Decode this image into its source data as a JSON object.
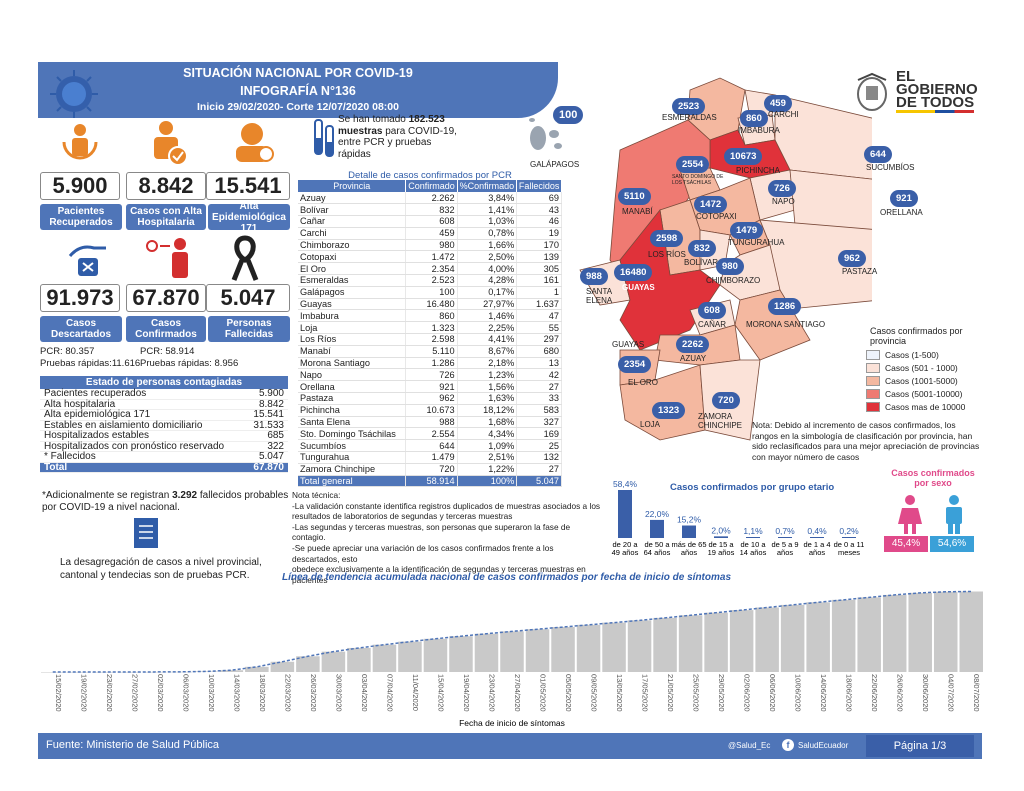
{
  "header": {
    "title": "SITUACIÓN NACIONAL POR  COVID-19",
    "subtitle": "INFOGRAFÍA N°136",
    "period": "Inicio 29/02/2020- Corte 12/07/2020 08:00"
  },
  "logo": {
    "line1": "EL",
    "line2": "GOBIERNO",
    "line3": "DE TODOS"
  },
  "stats": {
    "recuperados": {
      "value": "5.900",
      "label": "Pacientes Recuperados"
    },
    "alta_hosp": {
      "value": "8.842",
      "label": "Casos con Alta Hospitalaria"
    },
    "alta_epi": {
      "value": "15.541",
      "label": "Alta Epidemiológica 171"
    },
    "descartados": {
      "value": "91.973",
      "label": "Casos Descartados"
    },
    "confirmados": {
      "value": "67.870",
      "label": "Casos Confirmados"
    },
    "fallecidas": {
      "value": "5.047",
      "label": "Personas Fallecidas"
    },
    "pcr_desc": "PCR: 80.357",
    "rap_desc": "Pruebas rápidas:11.616",
    "pcr_conf": "PCR: 58.914",
    "rap_conf": "Pruebas rápidas: 8.956"
  },
  "muestras": {
    "pre": "Se han tomado ",
    "num": "182.523",
    "l2a": "muestras",
    "l2b": " para COVID-19,",
    "l3": "entre PCR y pruebas",
    "l4": "rápidas"
  },
  "tabla": {
    "title": "Detalle de casos confirmados por PCR",
    "headers": [
      "Provincia",
      "Confirmado",
      "%Confirmado",
      "Fallecidos"
    ],
    "rows": [
      [
        "Azuay",
        "2.262",
        "3,84%",
        "69"
      ],
      [
        "Bolívar",
        "832",
        "1,41%",
        "43"
      ],
      [
        "Cañar",
        "608",
        "1,03%",
        "46"
      ],
      [
        "Carchi",
        "459",
        "0,78%",
        "19"
      ],
      [
        "Chimborazo",
        "980",
        "1,66%",
        "170"
      ],
      [
        "Cotopaxi",
        "1.472",
        "2,50%",
        "139"
      ],
      [
        "El Oro",
        "2.354",
        "4,00%",
        "305"
      ],
      [
        "Esmeraldas",
        "2.523",
        "4,28%",
        "161"
      ],
      [
        "Galápagos",
        "100",
        "0,17%",
        "1"
      ],
      [
        "Guayas",
        "16.480",
        "27,97%",
        "1.637"
      ],
      [
        "Imbabura",
        "860",
        "1,46%",
        "47"
      ],
      [
        "Loja",
        "1.323",
        "2,25%",
        "55"
      ],
      [
        "Los Ríos",
        "2.598",
        "4,41%",
        "297"
      ],
      [
        "Manabí",
        "5.110",
        "8,67%",
        "680"
      ],
      [
        "Morona Santiago",
        "1.286",
        "2,18%",
        "13"
      ],
      [
        "Napo",
        "726",
        "1,23%",
        "42"
      ],
      [
        "Orellana",
        "921",
        "1,56%",
        "27"
      ],
      [
        "Pastaza",
        "962",
        "1,63%",
        "33"
      ],
      [
        "Pichincha",
        "10.673",
        "18,12%",
        "583"
      ],
      [
        "Santa Elena",
        "988",
        "1,68%",
        "327"
      ],
      [
        "Sto. Domingo Tsáchilas",
        "2.554",
        "4,34%",
        "169"
      ],
      [
        "Sucumbíos",
        "644",
        "1,09%",
        "25"
      ],
      [
        "Tungurahua",
        "1.479",
        "2,51%",
        "132"
      ],
      [
        "Zamora Chinchipe",
        "720",
        "1,22%",
        "27"
      ]
    ],
    "total": [
      "Total general",
      "58.914",
      "100%",
      "5.047"
    ]
  },
  "estado": {
    "title": "Estado de personas contagiadas",
    "rows": [
      [
        "Pacientes recuperados",
        "5.900"
      ],
      [
        "Alta hospitalaria",
        "8.842"
      ],
      [
        "Alta epidemiológica 171",
        "15.541"
      ],
      [
        "Estables en aislamiento domiciliario",
        "31.533"
      ],
      [
        "Hospitalizados estables",
        "685"
      ],
      [
        "Hospitalizados con pronóstico reservado",
        "322"
      ],
      [
        "* Fallecidos",
        "5.047"
      ]
    ],
    "total": [
      "Total",
      "67.870"
    ]
  },
  "nota_fallecidos": {
    "a": "*Adicionalmente se registran ",
    "b": "3.292",
    "c": " fallecidos probables",
    "d": "por COVID-19 a nivel nacional."
  },
  "desagregacion": {
    "l1": "La desagregación de casos a nivel provincial,",
    "l2": "cantonal y tendecias son  de pruebas PCR."
  },
  "nota_tecnica": {
    "title": "Nota técnica:",
    "l1": "-La validación constante identifica registros duplicados de muestras asociados a los",
    "l2": "resultados de laboratorios de segundas y terceras muestras",
    "l3": "-Las segundas y terceras muestras, son personas que superaron la fase de contagio.",
    "l4": "-Se puede apreciar una variación de los casos confirmados frente a los descartados, esto",
    "l5": "obedece exclusivamente a la identificación de segundas y terceras muestras en pacientes"
  },
  "mapa": {
    "numbers": {
      "esmeraldas": "2523",
      "carchi": "459",
      "imbabura": "860",
      "galapagos": "100",
      "sucumbios": "644",
      "pichincha": "10673",
      "stodomingo": "2554",
      "napo": "726",
      "manabi": "5110",
      "cotopaxi": "1472",
      "orellana": "921",
      "losrios": "2598",
      "bolivar": "832",
      "tungurahua": "1479",
      "chimborazo": "980",
      "pastaza": "962",
      "santaelena": "988",
      "guayas": "16480",
      "canar": "608",
      "morona": "1286",
      "azuay": "2262",
      "eloro": "2354",
      "zamora": "720",
      "loja": "1323"
    },
    "labels": {
      "esmeraldas": "ESMERALDAS",
      "carchi": "CARCHI",
      "imbabura": "IMBABURA",
      "galapagos": "GALÁPAGOS",
      "sucumbios": "SUCUMBÍOS",
      "stodomingo": "SANTO DOMINGO DE LOS TSÁCHILAS",
      "pichincha": "PICHINCHA",
      "napo": "NAPO",
      "manabi": "MANABÍ",
      "cotopaxi": "COTOPAXI",
      "orellana": "ORELLANA",
      "losrios": "LOS RÍOS",
      "bolivar": "BOLÍVAR",
      "tungurahua": "TUNGURAHUA",
      "chimborazo": "CHIMBORAZO",
      "pastaza": "PASTAZA",
      "santaelena": "SANTA ELENA",
      "guayas": "GUAYAS",
      "guayas2": "GUAYAS",
      "canar": "CAÑAR",
      "morona": "MORONA SANTIAGO",
      "azuay": "AZUAY",
      "eloro": "EL ORO",
      "zamora": "ZAMORA CHINCHIPE",
      "loja": "LOJA"
    },
    "legend_title": "Casos confirmados por provincia",
    "legend": [
      {
        "label": "Casos (1-500)",
        "color": "#eef3fb"
      },
      {
        "label": "Casos (501 - 1000)",
        "color": "#fbe2d8"
      },
      {
        "label": "Casos (1001-5000)",
        "color": "#f4b8a0"
      },
      {
        "label": "Casos (5001-10000)",
        "color": "#ef7a72"
      },
      {
        "label": "Casos mas de 10000",
        "color": "#e0323a"
      }
    ],
    "nota": "Nota: Debido al incremento de casos confirmados, los rangos en la simbología de clasificación por provincia, han sido reclasificados para una mejor apreciación de provincias con mayor número de casos"
  },
  "edad": {
    "title": "Casos confirmados por grupo etario",
    "groups": [
      {
        "label": "de 20 a 49 años",
        "pct": 58.4,
        "text": "58,4%"
      },
      {
        "label": "de 50 a 64 años",
        "pct": 22.0,
        "text": "22,0%"
      },
      {
        "label": "más de 65 años",
        "pct": 15.2,
        "text": "15,2%"
      },
      {
        "label": "de 15 a 19 años",
        "pct": 2.0,
        "text": "2,0%"
      },
      {
        "label": "de 10 a 14 años",
        "pct": 1.1,
        "text": "1,1%"
      },
      {
        "label": "de 5 a 9 años",
        "pct": 0.7,
        "text": "0,7%"
      },
      {
        "label": "de 1 a 4 años",
        "pct": 0.4,
        "text": "0,4%"
      },
      {
        "label": "de 0 a 11 meses",
        "pct": 0.2,
        "text": "0,2%"
      }
    ]
  },
  "sexo": {
    "title": "Casos confirmados por sexo",
    "mujeres": "45,4%",
    "hombres": "54,6%"
  },
  "tendencia": {
    "title": "Línea de tendencia acumulada nacional de casos confirmados por fecha de inicio de síntomas",
    "xlabel": "Fecha de inicio de síntomas"
  },
  "chart_data": {
    "type": "bar",
    "title": "Línea de tendencia acumulada nacional de casos confirmados por fecha de inicio de síntomas",
    "xlabel": "Fecha de inicio de síntomas",
    "x": [
      "15/02/2020",
      "19/02/2020",
      "23/02/2020",
      "27/02/2020",
      "02/03/2020",
      "06/03/2020",
      "10/03/2020",
      "14/03/2020",
      "18/03/2020",
      "22/03/2020",
      "26/03/2020",
      "30/03/2020",
      "03/04/2020",
      "07/04/2020",
      "11/04/2020",
      "15/04/2020",
      "19/04/2020",
      "23/04/2020",
      "27/04/2020",
      "01/05/2020",
      "05/05/2020",
      "09/05/2020",
      "13/05/2020",
      "17/05/2020",
      "21/05/2020",
      "25/05/2020",
      "29/05/2020",
      "02/06/2020",
      "06/06/2020",
      "10/06/2020",
      "14/06/2020",
      "18/06/2020",
      "22/06/2020",
      "26/06/2020",
      "30/06/2020",
      "04/07/2020",
      "08/07/2020"
    ],
    "values": [
      1,
      8,
      12,
      20,
      45,
      120,
      420,
      1300,
      3800,
      7500,
      11500,
      14900,
      17600,
      20000,
      22200,
      24300,
      26200,
      28000,
      29700,
      31300,
      32900,
      34500,
      36100,
      37800,
      39600,
      41500,
      43400,
      45300,
      47200,
      49100,
      51000,
      52800,
      54600,
      56400,
      57900,
      58700,
      58914
    ],
    "ylim": [
      0,
      60000
    ]
  },
  "footer": {
    "fuente": "Fuente: Ministerio de Salud Pública",
    "twitter": "@Salud_Ec",
    "facebook": "SaludEcuador",
    "pagina": "Página 1/3"
  }
}
